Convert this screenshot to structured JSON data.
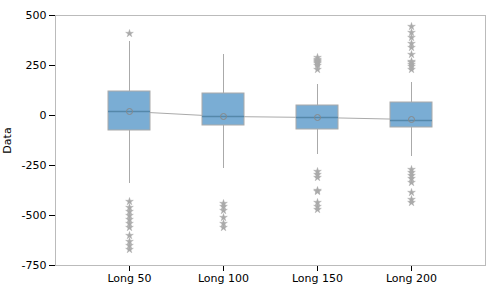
{
  "chart_data": {
    "type": "box",
    "categories": [
      "Long 50",
      "Long 100",
      "Long 150",
      "Long 200"
    ],
    "q1": [
      -75,
      -50,
      -70,
      -60
    ],
    "median": [
      20,
      -5,
      -10,
      -25
    ],
    "q3": [
      120,
      110,
      50,
      65
    ],
    "mean": [
      20,
      -5,
      -10,
      -20
    ],
    "whisker_low": [
      -340,
      -265,
      -195,
      -205
    ],
    "whisker_high": [
      370,
      305,
      155,
      165
    ],
    "outliers_low": [
      [
        -430,
        -460,
        -480,
        -500,
        -520,
        -540,
        -560,
        -600,
        -630,
        -650,
        -670
      ],
      [
        -440,
        -455,
        -475,
        -510,
        -540,
        -560
      ],
      [
        -280,
        -295,
        -310,
        -375,
        -380,
        -435,
        -455,
        -470
      ],
      [
        -270,
        -285,
        -300,
        -315,
        -335,
        -385,
        -420,
        -435
      ]
    ],
    "outliers_high": [
      [
        410
      ],
      [],
      [
        230,
        250,
        260,
        265,
        270,
        275,
        280,
        290
      ],
      [
        230,
        245,
        255,
        265,
        270,
        305,
        340,
        360,
        390,
        415,
        445
      ]
    ],
    "color": "#7aadd4",
    "ylabel": "Data",
    "ylim": [
      -750,
      500
    ],
    "yticks": [
      -750,
      -500,
      -250,
      0,
      250,
      500
    ],
    "grid": false
  }
}
